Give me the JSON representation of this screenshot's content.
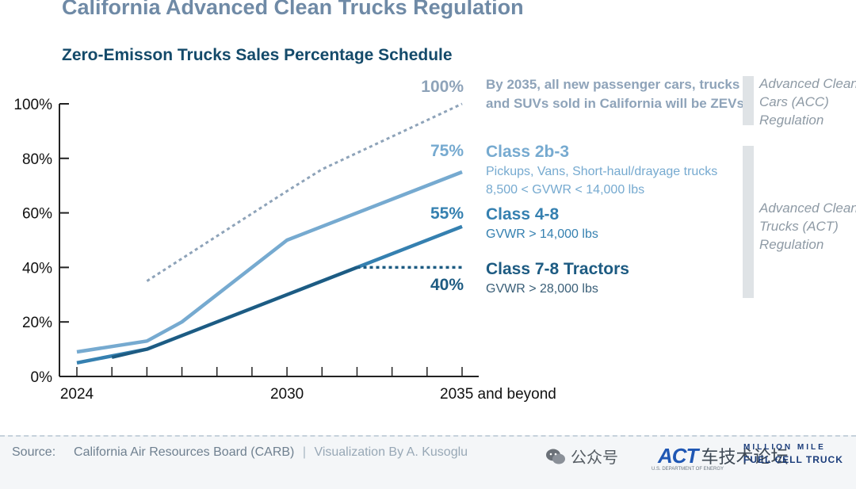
{
  "title": "California Advanced Clean Trucks Regulation",
  "chart_data": {
    "type": "line",
    "title": "Zero-Emisson Trucks Sales Percentage Schedule",
    "xlabel": "",
    "ylabel": "",
    "ylim": [
      0,
      100
    ],
    "xlim": [
      2024,
      2035
    ],
    "y_ticks": [
      "0%",
      "20%",
      "40%",
      "60%",
      "80%",
      "100%"
    ],
    "x_tick_labels": [
      {
        "x": 2024,
        "label": "2024"
      },
      {
        "x": 2030,
        "label": "2030"
      },
      {
        "x": 2035,
        "label": "2035 and beyond"
      }
    ],
    "series": [
      {
        "name": "Passenger cars, trucks and SUVs",
        "style": "dotted",
        "color": "#8ea3b9",
        "end_label": "100%",
        "x": [
          2026,
          2030,
          2031,
          2035
        ],
        "values": [
          35,
          68,
          76,
          100
        ]
      },
      {
        "name": "Class 2b-3",
        "style": "solid",
        "color": "#76aad0",
        "end_label": "75%",
        "x": [
          2024,
          2026,
          2027,
          2030,
          2035
        ],
        "values": [
          9,
          13,
          20,
          50,
          75
        ]
      },
      {
        "name": "Class 4-8",
        "style": "solid",
        "color": "#3580b0",
        "end_label": "55%",
        "x": [
          2024,
          2026,
          2030,
          2035
        ],
        "values": [
          5,
          10,
          30,
          55
        ]
      },
      {
        "name": "Class 7-8 Tractors",
        "style": "solid-then-dotted",
        "color": "#1d5b82",
        "end_label": "40%",
        "x": [
          2025,
          2026,
          2030,
          2032,
          2035
        ],
        "values": [
          7,
          10,
          30,
          40,
          40
        ]
      }
    ]
  },
  "annotations": {
    "acc_text_line1": "By 2035, all new passenger cars, trucks",
    "acc_text_line2": "and SUVs sold in California will be ZEVs",
    "class2b3_name": "Class 2b-3",
    "class2b3_desc1": "Pickups, Vans, Short-haul/drayage trucks",
    "class2b3_desc2": "8,500 < GVWR < 14,000 lbs",
    "class48_name": "Class 4-8",
    "class48_desc": "GVWR > 14,000 lbs",
    "class78_name": "Class 7-8 Tractors",
    "class78_desc": "GVWR > 28,000 lbs"
  },
  "regulations": {
    "acc": [
      "Advanced Clean",
      "Cars (ACC)",
      "Regulation"
    ],
    "act": [
      "Advanced Clean",
      "Trucks (ACT)",
      "Regulation"
    ]
  },
  "footer": {
    "source_label": "Source:",
    "source_value": "California Air Resources Board (CARB)",
    "separator": "|",
    "visualization": "Visualization By A. Kusoglu"
  },
  "watermark": {
    "text": "公众号",
    "logo_main": "ACT",
    "logo_cn": "车技术论坛",
    "logo_line1": "MILLION MILE",
    "logo_line2": "FUEL CELL TRUCK",
    "logo_sub": "U.S. DEPARTMENT OF ENERGY"
  },
  "colors": {
    "title": "#6f8aa6",
    "subtitle": "#144a6a",
    "axis": "#222222",
    "regulation_bar": "#dfe3e6",
    "regulation_text": "#8e9aa5"
  }
}
